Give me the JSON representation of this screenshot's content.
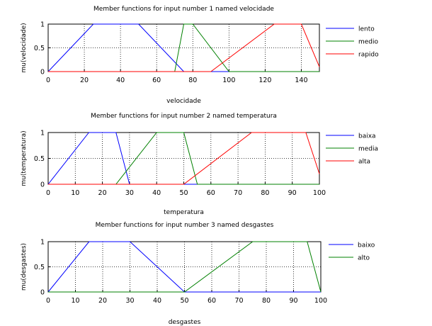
{
  "chart_data": [
    {
      "type": "line",
      "title": "Member functions for input number 1 named velocidade",
      "xlabel": "velocidade",
      "ylabel": "mu(velocidade)",
      "xlim": [
        0,
        150
      ],
      "ylim": [
        0,
        1
      ],
      "xticks": [
        0,
        20,
        40,
        60,
        80,
        100,
        120,
        140
      ],
      "yticks": [
        0,
        0.5,
        1
      ],
      "grid": true,
      "legend_position": "right",
      "series": [
        {
          "name": "lento",
          "color": "#0000ff",
          "x": [
            0,
            25,
            50,
            75
          ],
          "y": [
            0,
            1,
            1,
            0
          ]
        },
        {
          "name": "medio",
          "color": "#008000",
          "x": [
            70,
            75,
            80,
            100
          ],
          "y": [
            0,
            1,
            1,
            0
          ]
        },
        {
          "name": "rapido",
          "color": "#ff0000",
          "x": [
            90,
            125,
            140,
            150
          ],
          "y": [
            0,
            1,
            1,
            0.1
          ]
        }
      ]
    },
    {
      "type": "line",
      "title": "Member functions for input number 2 named temperatura",
      "xlabel": "temperatura",
      "ylabel": "mu(temperatura)",
      "xlim": [
        0,
        100
      ],
      "ylim": [
        0,
        1
      ],
      "xticks": [
        0,
        10,
        20,
        30,
        40,
        50,
        60,
        70,
        80,
        90,
        100
      ],
      "yticks": [
        0,
        0.5,
        1
      ],
      "grid": true,
      "legend_position": "right",
      "series": [
        {
          "name": "baixa",
          "color": "#0000ff",
          "x": [
            0,
            15,
            25,
            30
          ],
          "y": [
            0,
            1,
            1,
            0
          ]
        },
        {
          "name": "media",
          "color": "#008000",
          "x": [
            25,
            40,
            50,
            55
          ],
          "y": [
            0,
            1,
            1,
            0
          ]
        },
        {
          "name": "alta",
          "color": "#ff0000",
          "x": [
            50,
            75,
            95,
            100
          ],
          "y": [
            0,
            1,
            1,
            0.2
          ]
        }
      ]
    },
    {
      "type": "line",
      "title": "Member functions for input number 3 named desgastes",
      "xlabel": "desgastes",
      "ylabel": "mu(desgastes)",
      "xlim": [
        0,
        100
      ],
      "ylim": [
        0,
        1
      ],
      "xticks": [
        0,
        10,
        20,
        30,
        40,
        50,
        60,
        70,
        80,
        90,
        100
      ],
      "yticks": [
        0,
        0.5,
        1
      ],
      "grid": true,
      "legend_position": "right",
      "series": [
        {
          "name": "baixo",
          "color": "#0000ff",
          "x": [
            0,
            15,
            30,
            50
          ],
          "y": [
            0,
            1,
            1,
            0
          ]
        },
        {
          "name": "alto",
          "color": "#008000",
          "x": [
            50,
            75,
            95,
            100
          ],
          "y": [
            0,
            1,
            1,
            0
          ]
        }
      ]
    }
  ]
}
